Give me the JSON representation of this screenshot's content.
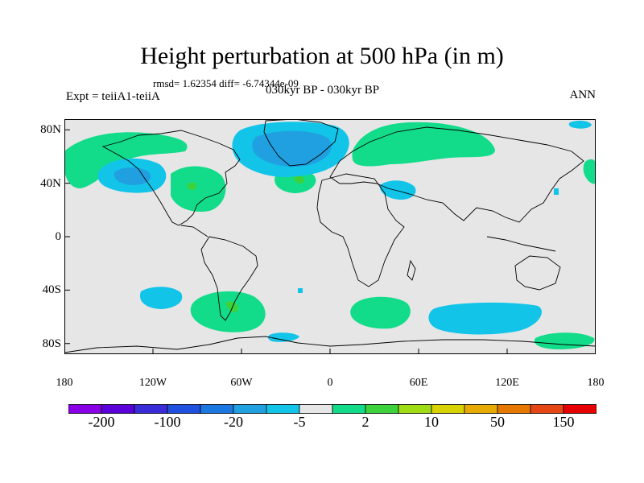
{
  "title": "Height perturbation at 500 hPa (in m)",
  "stats": "rmsd= 1.62354 diff= -6.74344e-09",
  "expt": "Expt = teiiA1-teiiA",
  "period": "030kyr BP - 030kyr BP",
  "season": "ANN",
  "map": {
    "ocean_color": "#e6e6e6",
    "y_ticks": [
      {
        "lat": 80,
        "label": "80N"
      },
      {
        "lat": 40,
        "label": "40N"
      },
      {
        "lat": 0,
        "label": "0"
      },
      {
        "lat": -40,
        "label": "40S"
      },
      {
        "lat": -80,
        "label": "80S"
      }
    ],
    "x_ticks": [
      {
        "lon": -180,
        "label": "180"
      },
      {
        "lon": -120,
        "label": "120W"
      },
      {
        "lon": -60,
        "label": "60W"
      },
      {
        "lon": 0,
        "label": "0"
      },
      {
        "lon": 60,
        "label": "60E"
      },
      {
        "lon": 120,
        "label": "120E"
      },
      {
        "lon": 180,
        "label": "180"
      }
    ]
  },
  "colorbar": {
    "colors": [
      "#8a00e6",
      "#5a00d8",
      "#3a2cd8",
      "#2050e0",
      "#1a78e0",
      "#20a0e0",
      "#12c4e8",
      "#e6e6e6",
      "#12dc8a",
      "#3cd23c",
      "#a0dc14",
      "#d8d200",
      "#e6aa00",
      "#e67800",
      "#e64614",
      "#e60000"
    ],
    "labels": [
      {
        "index": 1,
        "text": "-200"
      },
      {
        "index": 3,
        "text": "-100"
      },
      {
        "index": 5,
        "text": "-20"
      },
      {
        "index": 7,
        "text": "-5"
      },
      {
        "index": 9,
        "text": "2"
      },
      {
        "index": 11,
        "text": "10"
      },
      {
        "index": 13,
        "text": "50"
      },
      {
        "index": 15,
        "text": "150"
      }
    ]
  }
}
